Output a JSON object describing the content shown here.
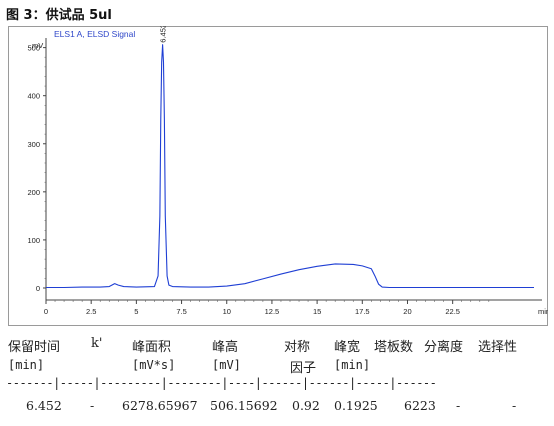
{
  "figure_caption": "图 3：供试品 5ul",
  "chart_data": {
    "type": "line",
    "title": "ELS1 A, ELSD Signal",
    "y_unit_label": "mV",
    "x_unit_label": "min",
    "xlim": [
      0,
      27.0
    ],
    "ylim": [
      -25,
      520
    ],
    "x_ticks": [
      0,
      2.5,
      5,
      7.5,
      10,
      12.5,
      15,
      17.5,
      20,
      22.5
    ],
    "x_tick_labels": [
      "0",
      "2.5",
      "5",
      "7.5",
      "10",
      "12.5",
      "15",
      "17.5",
      "20",
      "22.5"
    ],
    "y_ticks": [
      0,
      100,
      200,
      300,
      400,
      500
    ],
    "y_tick_labels": [
      "0",
      "100",
      "200",
      "300",
      "400",
      "500"
    ],
    "peak_annotation": {
      "x": 6.452,
      "y": 506,
      "label": "6.452"
    },
    "series": [
      {
        "color": "#1f3fd4",
        "x": [
          0,
          1.0,
          2.0,
          3.0,
          3.5,
          3.8,
          4.0,
          4.3,
          5.0,
          6.0,
          6.2,
          6.3,
          6.35,
          6.4,
          6.452,
          6.5,
          6.55,
          6.6,
          6.7,
          6.8,
          7.0,
          8.0,
          9.0,
          10.0,
          11.0,
          12.0,
          13.0,
          14.0,
          15.0,
          16.0,
          17.0,
          17.5,
          18.0,
          18.2,
          18.4,
          18.6,
          19.0,
          20.0,
          22.0,
          24.0,
          26.0,
          27.0
        ],
        "y": [
          1,
          1,
          2,
          2,
          3,
          9,
          6,
          3,
          2,
          3,
          25,
          150,
          350,
          470,
          506,
          470,
          350,
          150,
          25,
          6,
          3,
          2,
          2,
          4,
          9,
          19,
          29,
          38,
          45,
          50,
          49,
          46,
          40,
          25,
          8,
          2,
          1,
          1,
          1,
          1,
          1,
          1
        ]
      }
    ]
  },
  "table": {
    "headers": [
      "保留时间",
      "k'",
      "峰面积",
      "峰高",
      "对称",
      "峰宽",
      "塔板数",
      "分离度",
      "选择性"
    ],
    "header_sub": "因子",
    "units": [
      "[min]",
      "[mV*s]",
      "[mV]",
      "[min]"
    ],
    "separator": "-------|-----|---------|--------|----|------|------|-----|------",
    "rows": [
      [
        "6.452",
        "-",
        "6278.65967",
        "506.15692",
        "0.92",
        "0.1925",
        "6223",
        "-",
        "-"
      ]
    ]
  }
}
